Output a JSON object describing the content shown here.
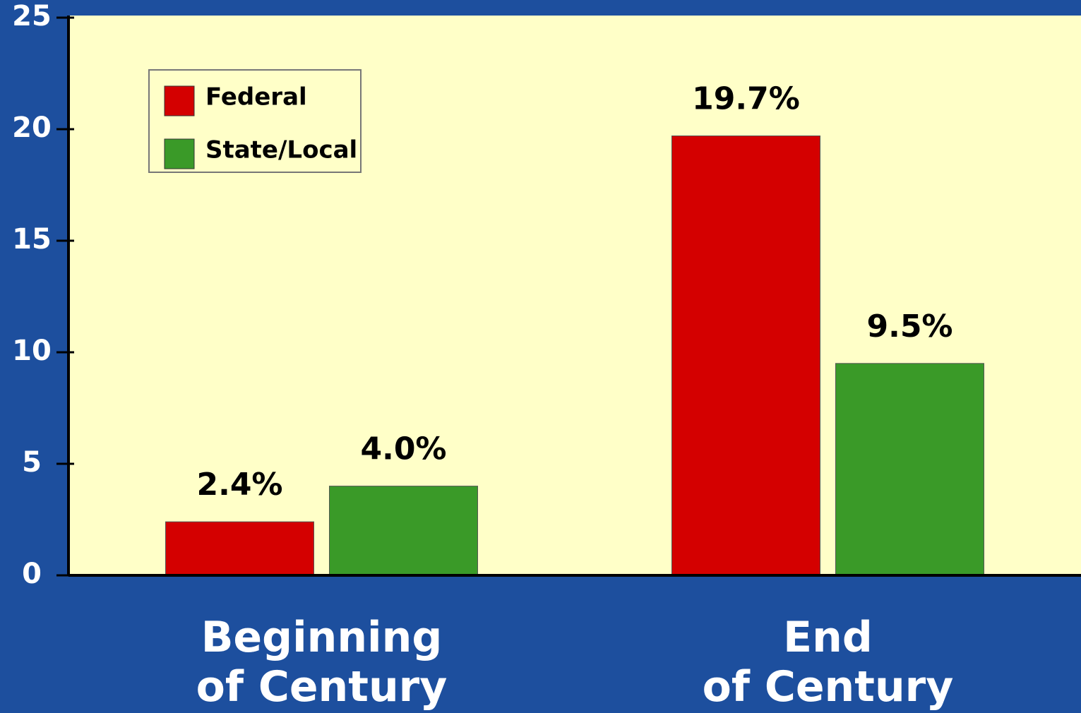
{
  "chart_data": {
    "type": "bar",
    "categories": [
      "Beginning\nof Century",
      "End\nof Century"
    ],
    "series": [
      {
        "name": "Federal",
        "color": "#d40000",
        "values": [
          2.4,
          19.7
        ],
        "value_labels": [
          "2.4%",
          "19.7%"
        ]
      },
      {
        "name": "State/Local",
        "color": "#3a9a28",
        "values": [
          4.0,
          9.5
        ],
        "value_labels": [
          "4.0%",
          "9.5%"
        ]
      }
    ],
    "ylim": [
      0,
      25
    ],
    "yticks": [
      0,
      5,
      10,
      15,
      20,
      25
    ],
    "legend": "upper left"
  }
}
